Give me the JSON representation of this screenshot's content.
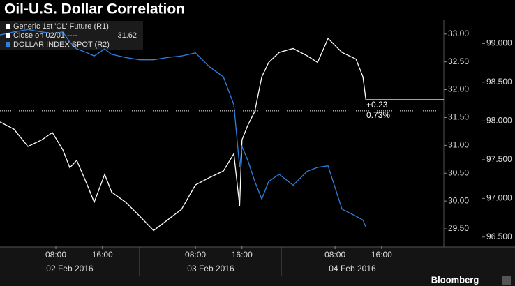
{
  "chart_data": {
    "type": "line",
    "title": "Oil-U.S. Dollar Correlation",
    "x": [
      -1.6,
      0.8,
      3.2,
      5.6,
      7.4,
      9.2,
      10.4,
      11.6,
      13.4,
      14.6,
      16.4,
      17.6,
      20,
      22.4,
      24.8,
      27.2,
      29.6,
      32,
      34.4,
      36.8,
      38.6,
      39.6,
      40,
      41,
      42.2,
      43.4,
      44.6,
      46.4,
      48.8,
      51.2,
      53,
      54.8,
      57.2,
      59.6,
      60.8,
      61.3
    ],
    "series": [
      {
        "name": "Generic 1st 'CL' Future (R1)",
        "color": "#ffffff",
        "axis": "y",
        "values": [
          31.42,
          31.29,
          30.98,
          31.1,
          31.23,
          30.92,
          30.6,
          30.73,
          30.29,
          29.98,
          30.48,
          30.16,
          29.98,
          29.73,
          29.47,
          29.66,
          29.85,
          30.29,
          30.42,
          30.54,
          30.85,
          29.91,
          31.1,
          31.36,
          31.61,
          32.23,
          32.49,
          32.67,
          32.74,
          32.61,
          32.49,
          32.92,
          32.67,
          32.55,
          32.23,
          31.82
        ]
      },
      {
        "name": "DOLLAR INDEX SPOT (R2)",
        "color": "#2f7fe0",
        "axis": "y2",
        "values": [
          99.11,
          99.15,
          99.18,
          99.15,
          99.13,
          99.15,
          99.02,
          98.93,
          98.88,
          98.84,
          98.93,
          98.86,
          98.82,
          98.79,
          98.79,
          98.82,
          98.84,
          98.88,
          98.7,
          98.57,
          98.21,
          97.4,
          97.67,
          97.49,
          97.22,
          96.99,
          97.22,
          97.31,
          97.17,
          97.35,
          97.4,
          97.42,
          96.86,
          96.77,
          96.72,
          96.63
        ]
      }
    ],
    "reference_line": {
      "label": "Close on 02/01 ----",
      "value": 31.62
    },
    "annotations": [
      "+0.23",
      "0.73%"
    ],
    "xlim": [
      -1.6,
      74.7
    ],
    "xticks": [
      {
        "value": 8,
        "label": "08:00"
      },
      {
        "value": 16,
        "label": "16:00"
      },
      {
        "value": 32,
        "label": "08:00"
      },
      {
        "value": 40,
        "label": "16:00"
      },
      {
        "value": 56,
        "label": "08:00"
      },
      {
        "value": 64,
        "label": "16:00"
      }
    ],
    "day_labels": [
      "02 Feb 2016",
      "03 Feb 2016",
      "04 Feb 2016"
    ],
    "ylim": [
      29.2,
      33.26
    ],
    "yticks": [
      {
        "value": 29.5,
        "label": "29.50"
      },
      {
        "value": 30,
        "label": "30.00"
      },
      {
        "value": 30.5,
        "label": "30.50"
      },
      {
        "value": 31,
        "label": "31.00"
      },
      {
        "value": 31.5,
        "label": "31.50"
      },
      {
        "value": 32,
        "label": "32.00"
      },
      {
        "value": 32.5,
        "label": "32.50"
      },
      {
        "value": 33,
        "label": "33.00"
      }
    ],
    "y2lim": [
      96.39,
      99.31
    ],
    "y2ticks": [
      {
        "value": 96.5,
        "label": "96.500"
      },
      {
        "value": 97,
        "label": "97.000"
      },
      {
        "value": 97.5,
        "label": "97.500"
      },
      {
        "value": 98,
        "label": "98.000"
      },
      {
        "value": 98.5,
        "label": "98.500"
      },
      {
        "value": 99,
        "label": "99.000"
      }
    ],
    "source": "Bloomberg"
  }
}
